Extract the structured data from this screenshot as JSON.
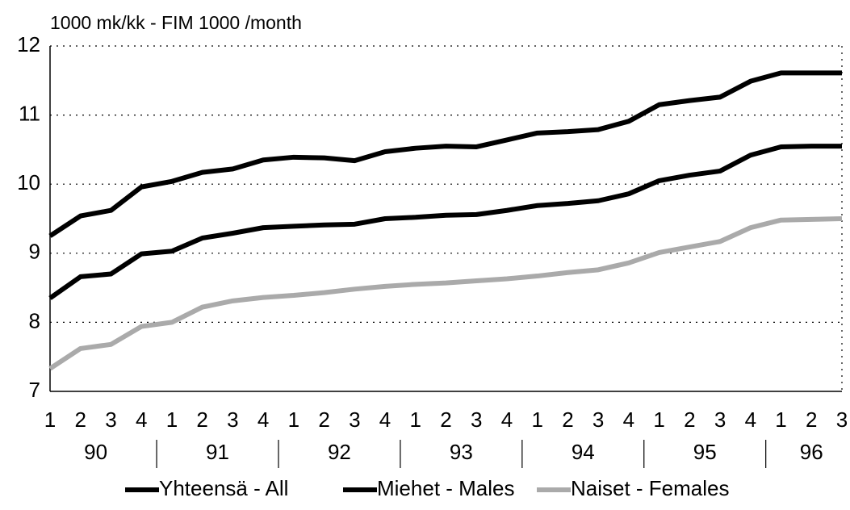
{
  "chart_data": {
    "type": "line",
    "title": "1000 mk/kk - FIM 1000 /month",
    "categories": [
      "1",
      "2",
      "3",
      "4",
      "1",
      "2",
      "3",
      "4",
      "1",
      "2",
      "3",
      "4",
      "1",
      "2",
      "3",
      "4",
      "1",
      "2",
      "3",
      "4",
      "1",
      "2",
      "3",
      "4",
      "1",
      "2",
      "3"
    ],
    "year_groups": [
      "90",
      "91",
      "92",
      "93",
      "94",
      "95",
      "96"
    ],
    "ylim": [
      7,
      12
    ],
    "yticks": [
      7,
      8,
      9,
      10,
      11,
      12
    ],
    "grid": true,
    "legend": "bottom",
    "series": [
      {
        "name": "Yhteensä - All",
        "color": "#000000",
        "values": [
          9.25,
          9.54,
          9.62,
          9.96,
          10.04,
          10.17,
          10.22,
          10.35,
          10.39,
          10.38,
          10.34,
          10.47,
          10.52,
          10.55,
          10.54,
          10.64,
          10.74,
          10.76,
          10.79,
          10.91,
          11.15,
          11.21,
          11.26,
          11.49,
          11.61,
          11.61,
          11.61
        ]
      },
      {
        "name": "Miehet - Males",
        "color": "#000000",
        "values": [
          8.35,
          8.66,
          8.7,
          8.99,
          9.03,
          9.22,
          9.29,
          9.37,
          9.39,
          9.41,
          9.42,
          9.5,
          9.52,
          9.55,
          9.56,
          9.62,
          9.69,
          9.72,
          9.76,
          9.86,
          10.05,
          10.13,
          10.19,
          10.42,
          10.54,
          10.55,
          10.55
        ]
      },
      {
        "name": "Naiset - Females",
        "color": "#aaaaaa",
        "values": [
          7.33,
          7.62,
          7.68,
          7.94,
          8.0,
          8.22,
          8.31,
          8.36,
          8.39,
          8.43,
          8.48,
          8.52,
          8.55,
          8.57,
          8.6,
          8.63,
          8.67,
          8.72,
          8.76,
          8.86,
          9.01,
          9.09,
          9.17,
          9.37,
          9.48,
          9.49,
          9.5
        ]
      }
    ]
  }
}
